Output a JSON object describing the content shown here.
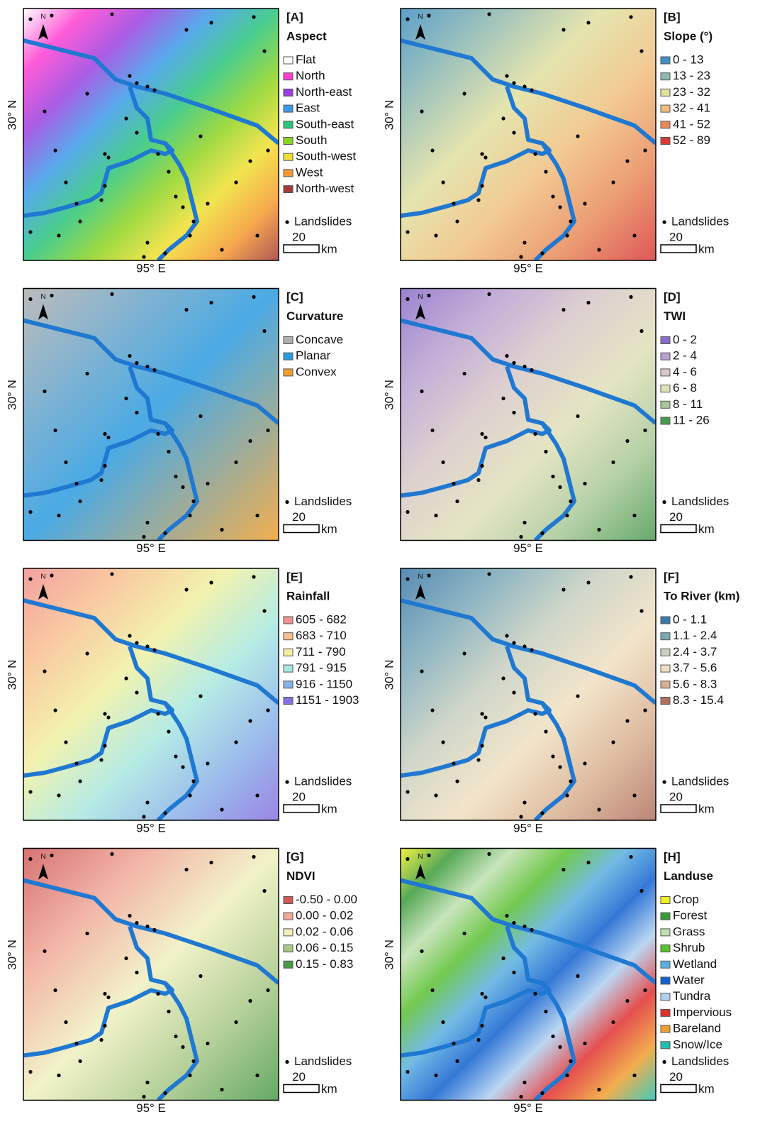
{
  "common": {
    "north": "N",
    "lat_label": "30° N",
    "lon_label": "95° E",
    "landslides": "Landslides",
    "scale": "20",
    "scale_unit": "km"
  },
  "panels": [
    {
      "label": "[A]",
      "title": "Aspect",
      "legend": [
        {
          "label": "Flat",
          "color": "#ffffff"
        },
        {
          "label": "North",
          "color": "#ff3fd0"
        },
        {
          "label": "North-east",
          "color": "#9b40e0"
        },
        {
          "label": "East",
          "color": "#3a9be8"
        },
        {
          "label": "South-east",
          "color": "#29c47a"
        },
        {
          "label": "South",
          "color": "#8bd321"
        },
        {
          "label": "South-west",
          "color": "#f0e030"
        },
        {
          "label": "West",
          "color": "#f59a2e"
        },
        {
          "label": "North-west",
          "color": "#a33a3a"
        }
      ]
    },
    {
      "label": "[B]",
      "title": "Slope (°)",
      "legend": [
        {
          "label": "0 - 13",
          "color": "#3f8fc0"
        },
        {
          "label": "13 - 23",
          "color": "#8fb8b0"
        },
        {
          "label": "23 - 32",
          "color": "#e0e0a0"
        },
        {
          "label": "32 - 41",
          "color": "#f0c080"
        },
        {
          "label": "41 - 52",
          "color": "#e88a5a"
        },
        {
          "label": "52 - 89",
          "color": "#d83a3a"
        }
      ]
    },
    {
      "label": "[C]",
      "title": "Curvature",
      "legend": [
        {
          "label": "Concave",
          "color": "#b0b0b0"
        },
        {
          "label": "Planar",
          "color": "#2b9be0"
        },
        {
          "label": "Convex",
          "color": "#f0a030"
        }
      ]
    },
    {
      "label": "[D]",
      "title": "TWI",
      "legend": [
        {
          "label": "0 - 2",
          "color": "#8a6cc8"
        },
        {
          "label": "2 - 4",
          "color": "#b8a0d0"
        },
        {
          "label": "4 - 6",
          "color": "#d8c8c8"
        },
        {
          "label": "6 - 8",
          "color": "#e0e0b8"
        },
        {
          "label": "8 - 11",
          "color": "#a8c898"
        },
        {
          "label": "11 - 26",
          "color": "#4a9a50"
        }
      ]
    },
    {
      "label": "[E]",
      "title": "Rainfall",
      "legend": [
        {
          "label": "605 - 682",
          "color": "#f09090"
        },
        {
          "label": "683 - 710",
          "color": "#f8c090"
        },
        {
          "label": "711 - 790",
          "color": "#f0f0a0"
        },
        {
          "label": "791 - 915",
          "color": "#a8e8e0"
        },
        {
          "label": "916 - 1150",
          "color": "#8ab0e8"
        },
        {
          "label": "1151 - 1903",
          "color": "#8870e0"
        }
      ]
    },
    {
      "label": "[F]",
      "title": "To River (km)",
      "legend": [
        {
          "label": "0 - 1.1",
          "color": "#3a78a8"
        },
        {
          "label": "1.1 - 2.4",
          "color": "#7aa8b8"
        },
        {
          "label": "2.4 - 3.7",
          "color": "#c8d0c0"
        },
        {
          "label": "3.7 - 5.6",
          "color": "#f0e0c0"
        },
        {
          "label": "5.6 - 8.3",
          "color": "#d8b090"
        },
        {
          "label": "8.3 - 15.4",
          "color": "#b07060"
        }
      ]
    },
    {
      "label": "[G]",
      "title": "NDVI",
      "legend": [
        {
          "label": "-0.50 - 0.00",
          "color": "#d05a5a"
        },
        {
          "label": "0.00 - 0.02",
          "color": "#f0a898"
        },
        {
          "label": "0.02 - 0.06",
          "color": "#f0f0c0"
        },
        {
          "label": "0.06 - 0.15",
          "color": "#a8c888"
        },
        {
          "label": "0.15 - 0.83",
          "color": "#4a9a4a"
        }
      ]
    },
    {
      "label": "[H]",
      "title": "Landuse",
      "legend": [
        {
          "label": "Crop",
          "color": "#f0f020"
        },
        {
          "label": "Forest",
          "color": "#3a9a3a"
        },
        {
          "label": "Grass",
          "color": "#c0e0b0"
        },
        {
          "label": "Shrub",
          "color": "#5ac030"
        },
        {
          "label": "Wetland",
          "color": "#5ab0e0"
        },
        {
          "label": "Water",
          "color": "#1060d0"
        },
        {
          "label": "Tundra",
          "color": "#b0d0f0"
        },
        {
          "label": "Impervious",
          "color": "#e03030"
        },
        {
          "label": "Bareland",
          "color": "#f0a030"
        },
        {
          "label": "Snow/Ice",
          "color": "#20c0b0"
        }
      ]
    }
  ]
}
